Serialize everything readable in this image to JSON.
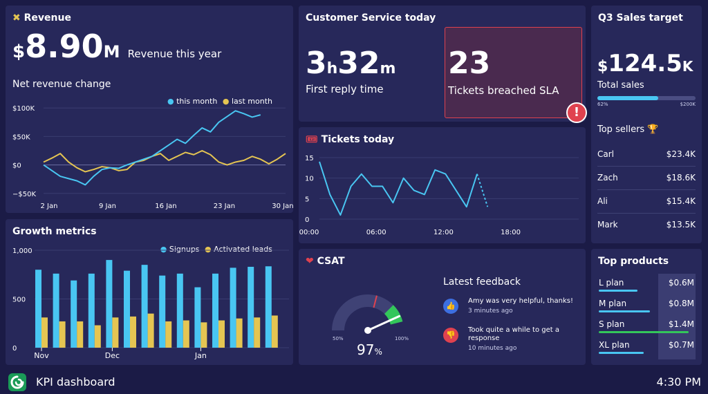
{
  "colors": {
    "background": "#1b1b46",
    "card": "#27285a",
    "cyan": "#49c6f2",
    "yellow": "#e5c552",
    "green": "#33c65a",
    "red": "#e0424f",
    "alert_bg": "#4a2a4f"
  },
  "revenue": {
    "title": "Revenue",
    "icon": "coins-icon",
    "prefix": "$",
    "value": "8.90",
    "suffix": "M",
    "caption": "Revenue this year",
    "chart_title": "Net revenue change",
    "legend_this": "this month",
    "legend_last": "last month",
    "y_labels": [
      "$100K",
      "$50K",
      "$0",
      "−$50K"
    ],
    "x_labels": [
      "2 Jan",
      "9 Jan",
      "16 Jan",
      "23 Jan",
      "30 Jan"
    ]
  },
  "customer_service": {
    "title": "Customer Service today",
    "reply_hours": "3",
    "reply_h": "h",
    "reply_minutes": "32",
    "reply_m": "m",
    "reply_caption": "First reply time",
    "breached_value": "23",
    "breached_caption": "Tickets breached SLA",
    "alert_icon": "exclamation-icon"
  },
  "sales_target": {
    "title": "Q3 Sales target",
    "prefix": "$",
    "value": "124.5",
    "suffix": "K",
    "caption": "Total sales",
    "progress_percent": 62,
    "progress_label": "62%",
    "progress_max": "$200K",
    "top_sellers_title": "Top sellers",
    "trophy_icon": "trophy-icon",
    "sellers": [
      {
        "name": "Carl",
        "amount": "$23.4K"
      },
      {
        "name": "Zach",
        "amount": "$18.6K"
      },
      {
        "name": "Ali",
        "amount": "$15.4K"
      },
      {
        "name": "Mark",
        "amount": "$13.5K"
      }
    ]
  },
  "tickets": {
    "title": "Tickets today",
    "icon": "ticket-icon"
  },
  "growth": {
    "title": "Growth metrics",
    "legend_signups": "Signups",
    "legend_leads": "Activated leads"
  },
  "csat": {
    "title": "CSAT",
    "icon": "heart-icon",
    "value": "97",
    "unit": "%",
    "gauge_min": "50%",
    "gauge_max": "100%",
    "feedback_title": "Latest feedback",
    "feedback": [
      {
        "icon": "thumbs-up-icon",
        "text": "Amy was very helpful, thanks!",
        "time": "3 minutes ago"
      },
      {
        "icon": "thumbs-down-icon",
        "text": "Took quite a while to get a response",
        "time": "10 minutes ago"
      }
    ]
  },
  "top_products": {
    "title": "Top products",
    "items": [
      {
        "name": "L plan",
        "value": "$0.6M",
        "fraction": 0.43,
        "color": "#49c6f2"
      },
      {
        "name": "M plan",
        "value": "$0.8M",
        "fraction": 0.57,
        "color": "#49c6f2"
      },
      {
        "name": "S plan",
        "value": "$1.4M",
        "fraction": 1.0,
        "color": "#33c65a"
      },
      {
        "name": "XL plan",
        "value": "$0.7M",
        "fraction": 0.5,
        "color": "#49c6f2"
      }
    ]
  },
  "footer": {
    "app_name": "KPI dashboard",
    "time": "4:30 PM",
    "logo_icon": "logo-icon"
  },
  "chart_data": [
    {
      "type": "line",
      "title": "Net revenue change",
      "xlabel": "",
      "ylabel": "",
      "categories": [
        "2 Jan",
        "9 Jan",
        "16 Jan",
        "23 Jan",
        "30 Jan"
      ],
      "x": [
        0,
        1,
        2,
        3,
        4,
        5,
        6,
        7,
        8,
        9,
        10,
        11,
        12,
        13,
        14,
        15,
        16,
        17,
        18,
        19,
        20,
        21,
        22,
        23,
        24,
        25,
        26,
        27,
        28,
        29
      ],
      "ylim": [
        -60000,
        110000
      ],
      "series": [
        {
          "name": "this month",
          "color": "#49c6f2",
          "values": [
            0,
            -10000,
            -20000,
            -24000,
            -28000,
            -35000,
            -20000,
            -8000,
            -5000,
            -6000,
            0,
            5000,
            10000,
            15000,
            25000,
            35000,
            45000,
            38000,
            52000,
            65000,
            58000,
            75000,
            85000,
            95000,
            90000,
            84000,
            88000,
            null,
            null,
            null
          ]
        },
        {
          "name": "last month",
          "color": "#e5c552",
          "values": [
            5000,
            12000,
            20000,
            5000,
            -5000,
            -12000,
            -8000,
            -3000,
            -5000,
            -10000,
            -8000,
            5000,
            8000,
            15000,
            20000,
            8000,
            15000,
            22000,
            18000,
            25000,
            18000,
            5000,
            0,
            5000,
            8000,
            15000,
            10000,
            2000,
            10000,
            20000
          ]
        }
      ]
    },
    {
      "type": "line",
      "title": "Tickets today",
      "xlabel": "",
      "ylabel": "",
      "categories": [
        "00:00",
        "06:00",
        "12:00",
        "18:00"
      ],
      "ylim": [
        0,
        15
      ],
      "series": [
        {
          "name": "tickets",
          "color": "#49c6f2",
          "x": [
            0,
            1,
            2,
            3,
            4,
            5,
            6,
            7,
            8,
            9,
            10,
            11,
            12,
            13,
            14,
            15,
            16
          ],
          "values": [
            14,
            6,
            1,
            8,
            11,
            8,
            8,
            4,
            10,
            7,
            6,
            12,
            11,
            7,
            3,
            11,
            3
          ]
        }
      ]
    },
    {
      "type": "bar",
      "title": "Growth metrics",
      "xlabel": "",
      "ylabel": "",
      "categories": [
        "Nov",
        "",
        "",
        "",
        "Dec",
        "",
        "",
        "",
        "",
        "Jan",
        "",
        "",
        "",
        ""
      ],
      "ylim": [
        0,
        1000
      ],
      "series": [
        {
          "name": "Signups",
          "color": "#49c6f2",
          "values": [
            800,
            760,
            690,
            760,
            900,
            790,
            850,
            740,
            760,
            620,
            760,
            820,
            830,
            835
          ]
        },
        {
          "name": "Activated leads",
          "color": "#e5c552",
          "values": [
            310,
            270,
            270,
            230,
            310,
            320,
            350,
            270,
            280,
            260,
            280,
            300,
            310,
            330
          ]
        }
      ]
    }
  ]
}
